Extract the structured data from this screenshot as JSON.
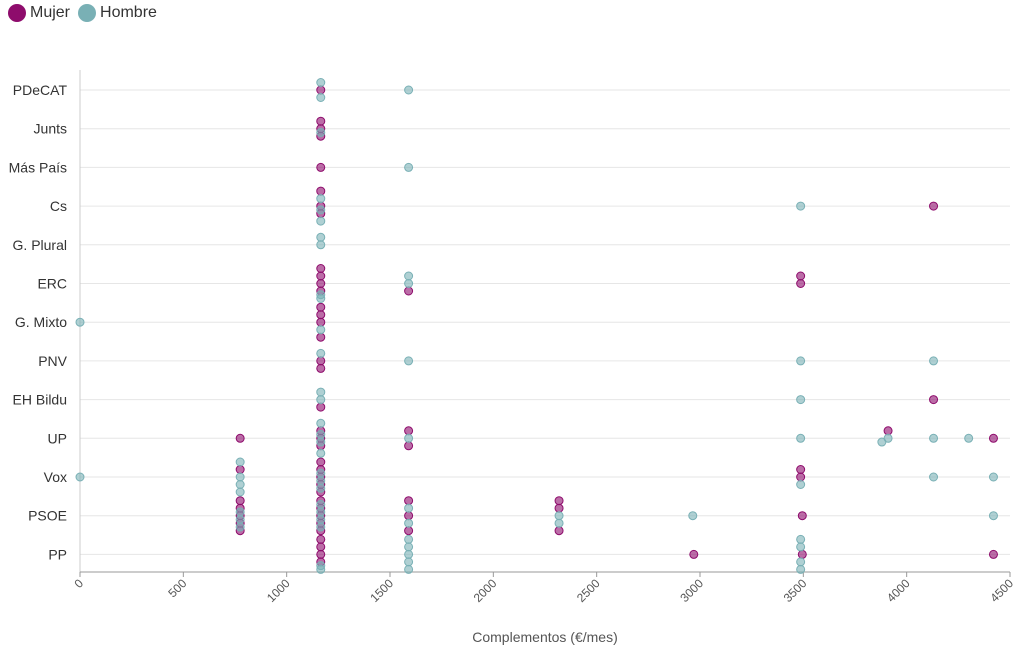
{
  "legend": {
    "items": [
      {
        "label": "Mujer",
        "color": "#8e0c6c"
      },
      {
        "label": "Hombre",
        "color": "#79b0b5"
      }
    ]
  },
  "chart_data": {
    "type": "scatter",
    "title": "",
    "xlabel": "Complementos (€/mes)",
    "ylabel": "",
    "xlim": [
      0,
      4500
    ],
    "xticks": [
      0,
      500,
      1000,
      1500,
      2000,
      2500,
      3000,
      3500,
      4000,
      4500
    ],
    "categories": [
      "PDeCAT",
      "Junts",
      "Más País",
      "Cs",
      "G. Plural",
      "ERC",
      "G. Mixto",
      "PNV",
      "EH Bildu",
      "UP",
      "Vox",
      "PSOE",
      "PP"
    ],
    "series": [
      {
        "name": "Mujer",
        "color": "#8e0c6c",
        "points": [
          {
            "x": 1165,
            "y": "PDeCAT",
            "j": 0
          },
          {
            "x": 1165,
            "y": "Junts",
            "j": -1
          },
          {
            "x": 1165,
            "y": "Junts",
            "j": 0
          },
          {
            "x": 1165,
            "y": "Junts",
            "j": 1
          },
          {
            "x": 1165,
            "y": "Más País",
            "j": 0
          },
          {
            "x": 1165,
            "y": "Cs",
            "j": -2
          },
          {
            "x": 1165,
            "y": "Cs",
            "j": 0
          },
          {
            "x": 1165,
            "y": "Cs",
            "j": 1
          },
          {
            "x": 4130,
            "y": "Cs",
            "j": 0
          },
          {
            "x": 1165,
            "y": "ERC",
            "j": -2
          },
          {
            "x": 1165,
            "y": "ERC",
            "j": -1
          },
          {
            "x": 1165,
            "y": "ERC",
            "j": 0
          },
          {
            "x": 1165,
            "y": "ERC",
            "j": 1
          },
          {
            "x": 1590,
            "y": "ERC",
            "j": 1
          },
          {
            "x": 3487,
            "y": "ERC",
            "j": -1
          },
          {
            "x": 3487,
            "y": "ERC",
            "j": 0
          },
          {
            "x": 1165,
            "y": "G. Mixto",
            "j": -2
          },
          {
            "x": 1165,
            "y": "G. Mixto",
            "j": -1
          },
          {
            "x": 1165,
            "y": "G. Mixto",
            "j": 0
          },
          {
            "x": 1165,
            "y": "G. Mixto",
            "j": 2
          },
          {
            "x": 1165,
            "y": "PNV",
            "j": 0
          },
          {
            "x": 1165,
            "y": "PNV",
            "j": 1
          },
          {
            "x": 1165,
            "y": "EH Bildu",
            "j": 1
          },
          {
            "x": 4130,
            "y": "EH Bildu",
            "j": 0
          },
          {
            "x": 775,
            "y": "UP",
            "j": 0
          },
          {
            "x": 1165,
            "y": "UP",
            "j": -1
          },
          {
            "x": 1165,
            "y": "UP",
            "j": 0
          },
          {
            "x": 1165,
            "y": "UP",
            "j": 1
          },
          {
            "x": 1590,
            "y": "UP",
            "j": -1
          },
          {
            "x": 1590,
            "y": "UP",
            "j": 1
          },
          {
            "x": 3910,
            "y": "UP",
            "j": -1
          },
          {
            "x": 4420,
            "y": "UP",
            "j": 0
          },
          {
            "x": 775,
            "y": "Vox",
            "j": -1
          },
          {
            "x": 1165,
            "y": "Vox",
            "j": -2
          },
          {
            "x": 1165,
            "y": "Vox",
            "j": -1
          },
          {
            "x": 1165,
            "y": "Vox",
            "j": 0
          },
          {
            "x": 1165,
            "y": "Vox",
            "j": 1
          },
          {
            "x": 1165,
            "y": "Vox",
            "j": 2
          },
          {
            "x": 3487,
            "y": "Vox",
            "j": -1
          },
          {
            "x": 3487,
            "y": "Vox",
            "j": 0
          },
          {
            "x": 775,
            "y": "PSOE",
            "j": -2
          },
          {
            "x": 775,
            "y": "PSOE",
            "j": -1
          },
          {
            "x": 775,
            "y": "PSOE",
            "j": 0
          },
          {
            "x": 775,
            "y": "PSOE",
            "j": 1
          },
          {
            "x": 775,
            "y": "PSOE",
            "j": 2
          },
          {
            "x": 1165,
            "y": "PSOE",
            "j": -2
          },
          {
            "x": 1165,
            "y": "PSOE",
            "j": -1
          },
          {
            "x": 1165,
            "y": "PSOE",
            "j": 0
          },
          {
            "x": 1165,
            "y": "PSOE",
            "j": 1
          },
          {
            "x": 1165,
            "y": "PSOE",
            "j": 2
          },
          {
            "x": 1590,
            "y": "PSOE",
            "j": -2
          },
          {
            "x": 1590,
            "y": "PSOE",
            "j": 0
          },
          {
            "x": 1590,
            "y": "PSOE",
            "j": 2
          },
          {
            "x": 2318,
            "y": "PSOE",
            "j": -2
          },
          {
            "x": 2318,
            "y": "PSOE",
            "j": -1
          },
          {
            "x": 2318,
            "y": "PSOE",
            "j": 2
          },
          {
            "x": 3495,
            "y": "PSOE",
            "j": 0
          },
          {
            "x": 1165,
            "y": "PP",
            "j": -2
          },
          {
            "x": 1165,
            "y": "PP",
            "j": -1
          },
          {
            "x": 1165,
            "y": "PP",
            "j": 0
          },
          {
            "x": 1165,
            "y": "PP",
            "j": 1
          },
          {
            "x": 2970,
            "y": "PP",
            "j": 0
          },
          {
            "x": 3495,
            "y": "PP",
            "j": 0
          },
          {
            "x": 4420,
            "y": "PP",
            "j": 0
          }
        ]
      },
      {
        "name": "Hombre",
        "color": "#79b0b5",
        "points": [
          {
            "x": 1165,
            "y": "PDeCAT",
            "j": -1
          },
          {
            "x": 1165,
            "y": "PDeCAT",
            "j": 1
          },
          {
            "x": 1590,
            "y": "PDeCAT",
            "j": 0
          },
          {
            "x": 1165,
            "y": "Junts",
            "j": 0.5
          },
          {
            "x": 1590,
            "y": "Más País",
            "j": 0
          },
          {
            "x": 1165,
            "y": "Cs",
            "j": -1
          },
          {
            "x": 1165,
            "y": "Cs",
            "j": 0.5
          },
          {
            "x": 1165,
            "y": "Cs",
            "j": 2
          },
          {
            "x": 3487,
            "y": "Cs",
            "j": 0
          },
          {
            "x": 1165,
            "y": "G. Plural",
            "j": -1
          },
          {
            "x": 1165,
            "y": "G. Plural",
            "j": 0
          },
          {
            "x": 1165,
            "y": "ERC",
            "j": 1.5
          },
          {
            "x": 1165,
            "y": "ERC",
            "j": 2
          },
          {
            "x": 1590,
            "y": "ERC",
            "j": -1
          },
          {
            "x": 1590,
            "y": "ERC",
            "j": 0
          },
          {
            "x": 0,
            "y": "G. Mixto",
            "j": 0
          },
          {
            "x": 1165,
            "y": "G. Mixto",
            "j": 1
          },
          {
            "x": 1165,
            "y": "PNV",
            "j": -1
          },
          {
            "x": 1590,
            "y": "PNV",
            "j": 0
          },
          {
            "x": 3487,
            "y": "PNV",
            "j": 0
          },
          {
            "x": 4130,
            "y": "PNV",
            "j": 0
          },
          {
            "x": 1165,
            "y": "EH Bildu",
            "j": -1
          },
          {
            "x": 1165,
            "y": "EH Bildu",
            "j": 0
          },
          {
            "x": 3487,
            "y": "EH Bildu",
            "j": 0
          },
          {
            "x": 1165,
            "y": "UP",
            "j": -2
          },
          {
            "x": 1165,
            "y": "UP",
            "j": -0.5
          },
          {
            "x": 1165,
            "y": "UP",
            "j": 0.5
          },
          {
            "x": 1165,
            "y": "UP",
            "j": 2
          },
          {
            "x": 1590,
            "y": "UP",
            "j": 0
          },
          {
            "x": 3487,
            "y": "UP",
            "j": 0
          },
          {
            "x": 3880,
            "y": "UP",
            "j": 0.5
          },
          {
            "x": 3910,
            "y": "UP",
            "j": 0
          },
          {
            "x": 4130,
            "y": "UP",
            "j": 0
          },
          {
            "x": 4300,
            "y": "UP",
            "j": 0
          },
          {
            "x": 0,
            "y": "Vox",
            "j": 0
          },
          {
            "x": 775,
            "y": "Vox",
            "j": -2
          },
          {
            "x": 775,
            "y": "Vox",
            "j": 0
          },
          {
            "x": 775,
            "y": "Vox",
            "j": 1
          },
          {
            "x": 775,
            "y": "Vox",
            "j": 2
          },
          {
            "x": 1165,
            "y": "Vox",
            "j": -0.5
          },
          {
            "x": 1165,
            "y": "Vox",
            "j": 0.5
          },
          {
            "x": 1165,
            "y": "Vox",
            "j": 1.5
          },
          {
            "x": 3487,
            "y": "Vox",
            "j": 1
          },
          {
            "x": 4130,
            "y": "Vox",
            "j": 0
          },
          {
            "x": 4420,
            "y": "Vox",
            "j": 0
          },
          {
            "x": 775,
            "y": "PSOE",
            "j": -0.5
          },
          {
            "x": 775,
            "y": "PSOE",
            "j": 0.5
          },
          {
            "x": 775,
            "y": "PSOE",
            "j": 1.5
          },
          {
            "x": 1165,
            "y": "PSOE",
            "j": -1.5
          },
          {
            "x": 1165,
            "y": "PSOE",
            "j": -0.5
          },
          {
            "x": 1165,
            "y": "PSOE",
            "j": 0.5
          },
          {
            "x": 1165,
            "y": "PSOE",
            "j": 1.5
          },
          {
            "x": 1590,
            "y": "PSOE",
            "j": -1
          },
          {
            "x": 1590,
            "y": "PSOE",
            "j": 1
          },
          {
            "x": 2318,
            "y": "PSOE",
            "j": 0
          },
          {
            "x": 2318,
            "y": "PSOE",
            "j": 1
          },
          {
            "x": 2965,
            "y": "PSOE",
            "j": 0
          },
          {
            "x": 4420,
            "y": "PSOE",
            "j": 0
          },
          {
            "x": 1165,
            "y": "PP",
            "j": 1.5
          },
          {
            "x": 1165,
            "y": "PP",
            "j": 2
          },
          {
            "x": 1590,
            "y": "PP",
            "j": -2
          },
          {
            "x": 1590,
            "y": "PP",
            "j": -1
          },
          {
            "x": 1590,
            "y": "PP",
            "j": 0
          },
          {
            "x": 1590,
            "y": "PP",
            "j": 1
          },
          {
            "x": 1590,
            "y": "PP",
            "j": 2
          },
          {
            "x": 3487,
            "y": "PP",
            "j": -2
          },
          {
            "x": 3487,
            "y": "PP",
            "j": -1
          },
          {
            "x": 3487,
            "y": "PP",
            "j": 1
          },
          {
            "x": 3487,
            "y": "PP",
            "j": 2
          }
        ]
      }
    ]
  }
}
